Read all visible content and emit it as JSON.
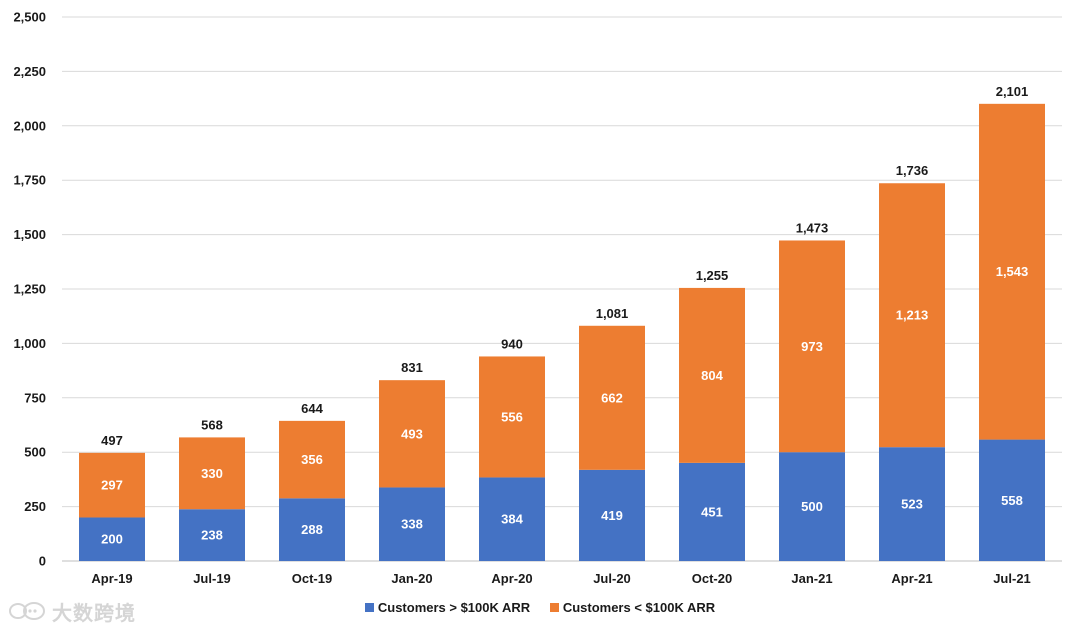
{
  "chart_data": {
    "type": "bar",
    "stacked": true,
    "categories": [
      "Apr-19",
      "Jul-19",
      "Oct-19",
      "Jan-20",
      "Apr-20",
      "Jul-20",
      "Oct-20",
      "Jan-21",
      "Apr-21",
      "Jul-21"
    ],
    "series": [
      {
        "name": "Customers > $100K ARR",
        "color": "#4472C4",
        "values": [
          200,
          238,
          288,
          338,
          384,
          419,
          451,
          500,
          523,
          558
        ]
      },
      {
        "name": "Customers < $100K ARR",
        "color": "#ED7D31",
        "values": [
          297,
          330,
          356,
          493,
          556,
          662,
          804,
          973,
          1213,
          1543
        ]
      }
    ],
    "totals": [
      497,
      568,
      644,
      831,
      940,
      1081,
      1255,
      1473,
      1736,
      2101
    ],
    "ylim": [
      0,
      2500
    ],
    "yticks": [
      0,
      250,
      500,
      750,
      1000,
      1250,
      1500,
      1750,
      2000,
      2250,
      2500
    ],
    "grid": true,
    "legend_position": "bottom",
    "title": "",
    "xlabel": "",
    "ylabel": ""
  },
  "watermark": {
    "text": "大数跨境",
    "logo": "chat-bubble-logo"
  }
}
